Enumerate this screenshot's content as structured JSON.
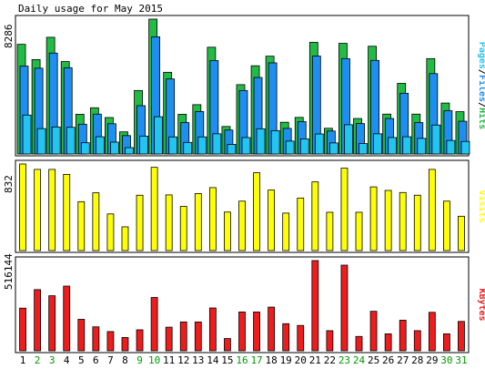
{
  "colors": {
    "background": "#ffffff",
    "frame": "#000000",
    "hits": "#22bb44",
    "files": "#1e8ff0",
    "pages": "#22c4f0",
    "visits": "#ffff00",
    "kbytes": "#ee1c1c",
    "weekday_label": "#000000",
    "weekend_label": "#009900"
  },
  "chart_data": {
    "type": "bar",
    "title": "Daily usage for May 2015",
    "categories": [
      "1",
      "2",
      "3",
      "4",
      "5",
      "6",
      "7",
      "8",
      "9",
      "10",
      "11",
      "12",
      "13",
      "14",
      "15",
      "16",
      "17",
      "18",
      "19",
      "20",
      "21",
      "22",
      "23",
      "24",
      "25",
      "26",
      "27",
      "28",
      "29",
      "30",
      "31"
    ],
    "weekend_days": [
      "2",
      "3",
      "9",
      "10",
      "16",
      "17",
      "23",
      "24",
      "30",
      "31"
    ],
    "panels": [
      {
        "id": "hits-files-pages",
        "ylabel_parts": [
          "Pages",
          "/",
          "Files",
          "/",
          "Hits"
        ],
        "max_label": "8286",
        "ylim": [
          0,
          8286
        ],
        "series": [
          {
            "name": "Hits",
            "values": [
              6740,
              5800,
              7170,
              5680,
              2440,
              2840,
              2240,
              1360,
              3900,
              8286,
              5020,
              2440,
              3030,
              6560,
              1690,
              4260,
              5420,
              6010,
              1950,
              2250,
              6860,
              1580,
              6800,
              2180,
              6620,
              2450,
              4340,
              2450,
              5860,
              3130,
              2600
            ]
          },
          {
            "name": "Files",
            "values": [
              5400,
              5270,
              6200,
              5300,
              1830,
              2450,
              1860,
              1130,
              2970,
              7200,
              4610,
              1930,
              2610,
              5740,
              1470,
              3900,
              4700,
              5600,
              1570,
              1990,
              6020,
              1410,
              5860,
              1870,
              5750,
              2180,
              3730,
              1930,
              4940,
              2660,
              2010
            ]
          },
          {
            "name": "Pages",
            "values": [
              2390,
              1560,
              1660,
              1640,
              690,
              1060,
              730,
              390,
              1100,
              2290,
              1050,
              710,
              1050,
              1240,
              590,
              1010,
              1550,
              1430,
              790,
              930,
              1230,
              680,
              1800,
              640,
              1240,
              1010,
              1060,
              960,
              1780,
              830,
              770
            ]
          }
        ]
      },
      {
        "id": "visits",
        "ylabel_parts": [
          "Visits"
        ],
        "max_label": "832",
        "ylim": [
          0,
          832
        ],
        "series": [
          {
            "name": "Visits",
            "values": [
              832,
              780,
              780,
              732,
              470,
              555,
              352,
              228,
              532,
              800,
              535,
              424,
              548,
              605,
              370,
              475,
              748,
              582,
              360,
              505,
              660,
              368,
              792,
              368,
              612,
              578,
              558,
              532,
              780,
              475,
              330
            ]
          }
        ]
      },
      {
        "id": "kbytes",
        "ylabel_parts": [
          "KBytes"
        ],
        "max_label": "516144",
        "ylim": [
          0,
          516144
        ],
        "series": [
          {
            "name": "KBytes",
            "values": [
              244000,
              350000,
              315000,
              370000,
              180000,
              137000,
              110000,
              76000,
              120000,
              305000,
              135000,
              165000,
              165000,
              245000,
              70000,
              222000,
              222000,
              250000,
              155000,
              145000,
              516144,
              115000,
              490000,
              82000,
              226000,
              97000,
              175000,
              115000,
              220000,
              97000,
              168000
            ]
          }
        ]
      }
    ]
  }
}
